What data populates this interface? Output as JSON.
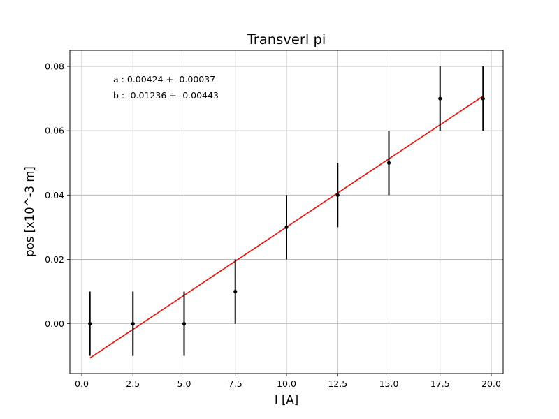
{
  "chart_data": {
    "type": "scatter",
    "title": "Transverl pi",
    "xlabel": "I [A]",
    "ylabel": "pos [x10^-3 m]",
    "xlim": [
      -0.58,
      20.58
    ],
    "ylim": [
      -0.0155,
      0.085
    ],
    "grid": true,
    "x_ticks": [
      0,
      2.5,
      5,
      7.5,
      10,
      12.5,
      15,
      17.5,
      20
    ],
    "x_tick_labels": [
      "0.0",
      "2.5",
      "5.0",
      "7.5",
      "10.0",
      "12.5",
      "15.0",
      "17.5",
      "20.0"
    ],
    "y_ticks": [
      0,
      0.02,
      0.04,
      0.06,
      0.08
    ],
    "y_tick_labels": [
      "0.00",
      "0.02",
      "0.04",
      "0.06",
      "0.08"
    ],
    "series": [
      {
        "kind": "errorbar",
        "color": "#000000",
        "x": [
          0.4,
          2.5,
          5.0,
          7.5,
          10.0,
          12.5,
          15.0,
          17.5,
          19.6
        ],
        "y": [
          0.0,
          0.0,
          0.0,
          0.01,
          0.03,
          0.04,
          0.05,
          0.07,
          0.07
        ],
        "yerr": [
          0.01,
          0.01,
          0.01,
          0.01,
          0.01,
          0.01,
          0.01,
          0.01,
          0.01
        ]
      },
      {
        "kind": "fit-line",
        "color": "#ff0000",
        "slope": 0.00424,
        "intercept": -0.01236,
        "x_range": [
          0.4,
          19.6
        ]
      }
    ],
    "annotations": [
      "a : 0.00424 +- 0.00037",
      "b : -0.01236 +- 0.00443"
    ]
  }
}
